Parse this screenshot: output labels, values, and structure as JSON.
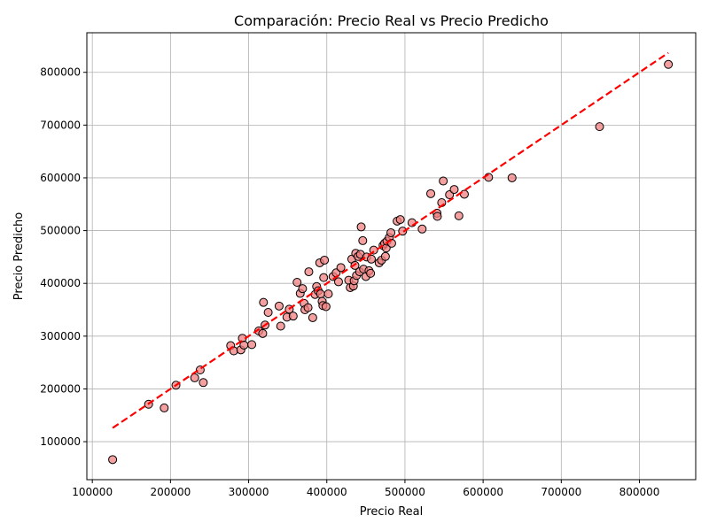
{
  "chart_data": {
    "type": "scatter",
    "title": "Comparación: Precio Real vs Precio Predicho",
    "xlabel": "Precio Real",
    "ylabel": "Precio Predicho",
    "xlim": [
      93000,
      872000
    ],
    "ylim": [
      28000,
      875000
    ],
    "xticks": [
      100000,
      200000,
      300000,
      400000,
      500000,
      600000,
      700000,
      800000
    ],
    "xtick_labels": [
      "100000",
      "200000",
      "300000",
      "400000",
      "500000",
      "600000",
      "700000",
      "800000"
    ],
    "yticks": [
      100000,
      200000,
      300000,
      400000,
      500000,
      600000,
      700000,
      800000
    ],
    "ytick_labels": [
      "100000",
      "200000",
      "300000",
      "400000",
      "500000",
      "600000",
      "700000",
      "800000"
    ],
    "grid": true,
    "colors": {
      "marker_fill": "#f08080",
      "marker_edge": "#000000",
      "ideal_line": "#ff0000"
    },
    "ideal_line": {
      "x": [
        126000,
        837000
      ],
      "y": [
        126000,
        837000
      ]
    },
    "points": [
      {
        "x": 126000,
        "y": 66000
      },
      {
        "x": 172000,
        "y": 171000
      },
      {
        "x": 192000,
        "y": 164000
      },
      {
        "x": 207000,
        "y": 207000
      },
      {
        "x": 231000,
        "y": 221000
      },
      {
        "x": 238000,
        "y": 236000
      },
      {
        "x": 242000,
        "y": 212000
      },
      {
        "x": 277000,
        "y": 282000
      },
      {
        "x": 281000,
        "y": 272000
      },
      {
        "x": 290000,
        "y": 274000
      },
      {
        "x": 292000,
        "y": 296000
      },
      {
        "x": 294000,
        "y": 283000
      },
      {
        "x": 304000,
        "y": 284000
      },
      {
        "x": 313000,
        "y": 310000
      },
      {
        "x": 318000,
        "y": 305000
      },
      {
        "x": 319000,
        "y": 364000
      },
      {
        "x": 321000,
        "y": 321000
      },
      {
        "x": 325000,
        "y": 345000
      },
      {
        "x": 339000,
        "y": 357000
      },
      {
        "x": 341000,
        "y": 319000
      },
      {
        "x": 349000,
        "y": 336000
      },
      {
        "x": 352000,
        "y": 351000
      },
      {
        "x": 357000,
        "y": 338000
      },
      {
        "x": 362000,
        "y": 402000
      },
      {
        "x": 366000,
        "y": 381000
      },
      {
        "x": 369000,
        "y": 390000
      },
      {
        "x": 371000,
        "y": 362000
      },
      {
        "x": 372000,
        "y": 350000
      },
      {
        "x": 376000,
        "y": 354000
      },
      {
        "x": 377000,
        "y": 422000
      },
      {
        "x": 382000,
        "y": 335000
      },
      {
        "x": 385000,
        "y": 379000
      },
      {
        "x": 387000,
        "y": 394000
      },
      {
        "x": 389000,
        "y": 386000
      },
      {
        "x": 391000,
        "y": 439000
      },
      {
        "x": 392000,
        "y": 380000
      },
      {
        "x": 394000,
        "y": 366000
      },
      {
        "x": 395000,
        "y": 358000
      },
      {
        "x": 396000,
        "y": 411000
      },
      {
        "x": 397000,
        "y": 444000
      },
      {
        "x": 399000,
        "y": 356000
      },
      {
        "x": 402000,
        "y": 380000
      },
      {
        "x": 408000,
        "y": 413000
      },
      {
        "x": 412000,
        "y": 420000
      },
      {
        "x": 415000,
        "y": 403000
      },
      {
        "x": 418000,
        "y": 430000
      },
      {
        "x": 428000,
        "y": 406000
      },
      {
        "x": 430000,
        "y": 392000
      },
      {
        "x": 432000,
        "y": 446000
      },
      {
        "x": 434000,
        "y": 395000
      },
      {
        "x": 435000,
        "y": 405000
      },
      {
        "x": 436000,
        "y": 434000
      },
      {
        "x": 437000,
        "y": 457000
      },
      {
        "x": 438000,
        "y": 415000
      },
      {
        "x": 440000,
        "y": 451000
      },
      {
        "x": 442000,
        "y": 422000
      },
      {
        "x": 443000,
        "y": 455000
      },
      {
        "x": 444000,
        "y": 507000
      },
      {
        "x": 446000,
        "y": 481000
      },
      {
        "x": 447000,
        "y": 427000
      },
      {
        "x": 450000,
        "y": 413000
      },
      {
        "x": 451000,
        "y": 450000
      },
      {
        "x": 454000,
        "y": 424000
      },
      {
        "x": 456000,
        "y": 419000
      },
      {
        "x": 457000,
        "y": 446000
      },
      {
        "x": 460000,
        "y": 463000
      },
      {
        "x": 467000,
        "y": 439000
      },
      {
        "x": 470000,
        "y": 444000
      },
      {
        "x": 472000,
        "y": 472000
      },
      {
        "x": 474000,
        "y": 476000
      },
      {
        "x": 475000,
        "y": 451000
      },
      {
        "x": 476000,
        "y": 467000
      },
      {
        "x": 477000,
        "y": 480000
      },
      {
        "x": 480000,
        "y": 487000
      },
      {
        "x": 482000,
        "y": 496000
      },
      {
        "x": 483000,
        "y": 476000
      },
      {
        "x": 490000,
        "y": 518000
      },
      {
        "x": 494000,
        "y": 521000
      },
      {
        "x": 497000,
        "y": 499000
      },
      {
        "x": 509000,
        "y": 515000
      },
      {
        "x": 522000,
        "y": 503000
      },
      {
        "x": 533000,
        "y": 570000
      },
      {
        "x": 541000,
        "y": 533000
      },
      {
        "x": 541500,
        "y": 527000
      },
      {
        "x": 547000,
        "y": 553000
      },
      {
        "x": 549000,
        "y": 594000
      },
      {
        "x": 557000,
        "y": 568000
      },
      {
        "x": 563000,
        "y": 578000
      },
      {
        "x": 569000,
        "y": 528000
      },
      {
        "x": 576000,
        "y": 569000
      },
      {
        "x": 607000,
        "y": 601000
      },
      {
        "x": 637000,
        "y": 600000
      },
      {
        "x": 749000,
        "y": 697000
      },
      {
        "x": 837000,
        "y": 815000
      }
    ]
  }
}
